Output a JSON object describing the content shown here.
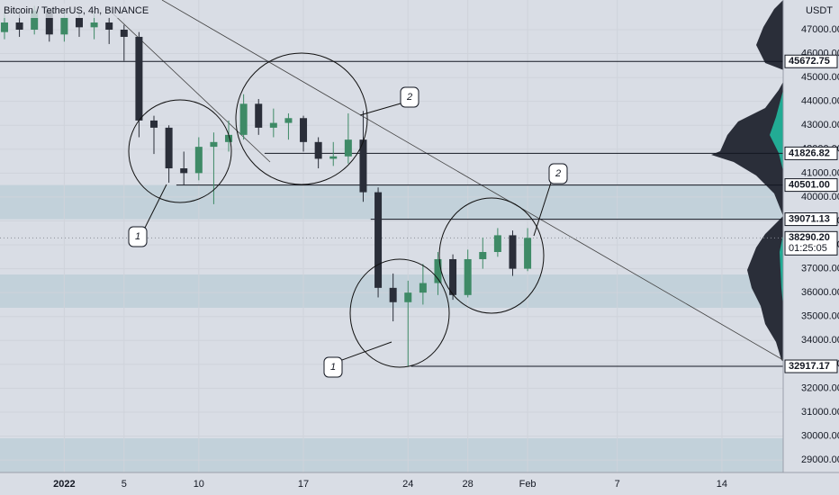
{
  "chart_data": {
    "type": "candlestick",
    "title": "Bitcoin / TetherUS, 4h, BINANCE",
    "currency": "USDT",
    "x": [
      -4,
      -3,
      -2,
      -1,
      0,
      1,
      2,
      3,
      4,
      5,
      6,
      7,
      8,
      9,
      10,
      11,
      12,
      13,
      14,
      15,
      16,
      17,
      18,
      19,
      20,
      21,
      22,
      23,
      24,
      25,
      26,
      27,
      28,
      29,
      30,
      31
    ],
    "open": [
      46900,
      47300,
      47000,
      47800,
      46800,
      47500,
      47100,
      47300,
      47000,
      46700,
      43200,
      42900,
      41200,
      41000,
      42100,
      42300,
      42600,
      43900,
      42900,
      43100,
      43300,
      42300,
      41600,
      41700,
      42400,
      40200,
      36200,
      35600,
      36000,
      36400,
      37400,
      35900,
      37400,
      37700,
      38400,
      37000
    ],
    "high": [
      47700,
      47900,
      48000,
      47900,
      47800,
      47800,
      47700,
      47500,
      47200,
      46900,
      43400,
      43000,
      41900,
      42500,
      42700,
      43200,
      44300,
      44100,
      43700,
      43500,
      43400,
      42500,
      42300,
      43500,
      43600,
      40400,
      36800,
      36500,
      37200,
      37700,
      37600,
      37800,
      38300,
      38700,
      38600,
      38700
    ],
    "low": [
      46600,
      46700,
      46800,
      46500,
      46500,
      46700,
      46600,
      46400,
      45700,
      42500,
      41800,
      40600,
      40500,
      40700,
      39700,
      41900,
      42400,
      42600,
      42500,
      42400,
      41900,
      41200,
      41300,
      41400,
      39800,
      35800,
      34800,
      32917,
      35500,
      35900,
      35700,
      35800,
      37000,
      37500,
      36700,
      36900
    ],
    "close": [
      47300,
      47000,
      47800,
      46800,
      47500,
      47100,
      47300,
      47000,
      46700,
      43200,
      42900,
      41200,
      41000,
      42100,
      42300,
      42600,
      43900,
      42900,
      43100,
      43300,
      42300,
      41600,
      41700,
      42400,
      40200,
      36200,
      35600,
      36000,
      36400,
      37400,
      35900,
      37400,
      37700,
      38400,
      37000,
      38290
    ],
    "up_color": "#3e8a66",
    "down_color": "#2a2e39",
    "xlim": [
      -4.3,
      48.1
    ],
    "xticks": [
      {
        "value": 0,
        "label": "2022"
      },
      {
        "value": 4,
        "label": "5"
      },
      {
        "value": 9,
        "label": "10"
      },
      {
        "value": 16,
        "label": "17"
      },
      {
        "value": 23,
        "label": "24"
      },
      {
        "value": 27,
        "label": "28"
      },
      {
        "value": 31,
        "label": "Feb"
      },
      {
        "value": 37,
        "label": "7"
      },
      {
        "value": 44,
        "label": "14"
      }
    ],
    "ylim": [
      28476,
      48242
    ],
    "yticks": [
      {
        "value": 29000,
        "label": "29000.00"
      },
      {
        "value": 30000,
        "label": "30000.00"
      },
      {
        "value": 31000,
        "label": "31000.00"
      },
      {
        "value": 32000,
        "label": "32000.00"
      },
      {
        "value": 33000,
        "label": "33000.00"
      },
      {
        "value": 34000,
        "label": "34000.00"
      },
      {
        "value": 35000,
        "label": "35000.00"
      },
      {
        "value": 36000,
        "label": "36000.00"
      },
      {
        "value": 37000,
        "label": "37000.00"
      },
      {
        "value": 38000,
        "label": "38000.00"
      },
      {
        "value": 39000,
        "label": "39000.00"
      },
      {
        "value": 40000,
        "label": "40000.00"
      },
      {
        "value": 41000,
        "label": "41000.00"
      },
      {
        "value": 42000,
        "label": "42000.00"
      },
      {
        "value": 43000,
        "label": "43000.00"
      },
      {
        "value": 44000,
        "label": "44000.00"
      },
      {
        "value": 45000,
        "label": "45000.00"
      },
      {
        "value": 46000,
        "label": "46000.00"
      },
      {
        "value": 47000,
        "label": "47000.00"
      }
    ],
    "levels": [
      {
        "value": 45672.75,
        "label": "45672.75",
        "from": -4.3
      },
      {
        "value": 41826.82,
        "label": "41826.82",
        "from": 13.4
      },
      {
        "value": 40501.0,
        "label": "40501.00",
        "from": 7.5
      },
      {
        "value": 39071.13,
        "label": "39071.13",
        "from": 20.5
      },
      {
        "value": 32917.17,
        "label": "32917.17",
        "from": 23.2
      }
    ],
    "last_price": {
      "value": 38290.2,
      "label": "38290.20",
      "countdown": "01:25:05"
    },
    "zones": [
      [
        39071.13,
        40501
      ],
      [
        35367,
        36759
      ],
      [
        28480,
        29907
      ]
    ],
    "annotations": [
      "1",
      "1",
      "2",
      "2"
    ]
  }
}
